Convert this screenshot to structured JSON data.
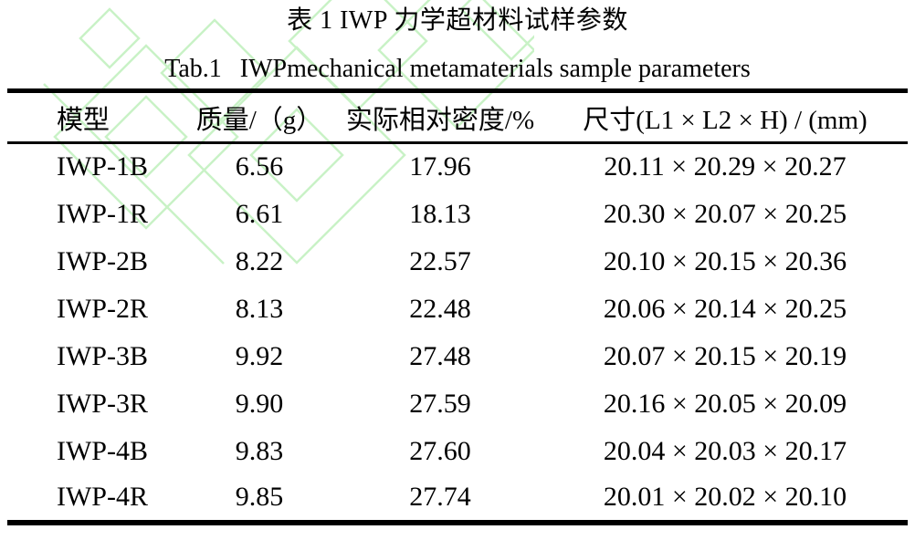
{
  "captions": {
    "zh": "表 1 IWP 力学超材料试样参数",
    "en_prefix": "Tab.1",
    "en_text": "IWPmechanical metamaterials sample parameters"
  },
  "table": {
    "columns": [
      "模型",
      "质量/（g）",
      "实际相对密度/%",
      "尺寸(L1 × L2 × H) / (mm)"
    ],
    "rows": [
      [
        "IWP-1B",
        "6.56",
        "17.96",
        "20.11 × 20.29 × 20.27"
      ],
      [
        "IWP-1R",
        "6.61",
        "18.13",
        "20.30 × 20.07 × 20.25"
      ],
      [
        "IWP-2B",
        "8.22",
        "22.57",
        "20.10 × 20.15 × 20.36"
      ],
      [
        "IWP-2R",
        "8.13",
        "22.48",
        "20.06 × 20.14 × 20.25"
      ],
      [
        "IWP-3B",
        "9.92",
        "27.48",
        "20.07 × 20.15 × 20.19"
      ],
      [
        "IWP-3R",
        "9.90",
        "27.59",
        "20.16 × 20.05 × 20.09"
      ],
      [
        "IWP-4B",
        "9.83",
        "27.60",
        "20.04 × 20.03 × 20.17"
      ],
      [
        "IWP-4R",
        "9.85",
        "27.74",
        "20.01 × 20.02 × 20.10"
      ]
    ]
  },
  "chart_data": {
    "type": "table",
    "title": "表 1 IWP 力学超材料试样参数 / Tab.1 IWPmechanical metamaterials sample parameters",
    "columns": [
      "模型",
      "质量/（g）",
      "实际相对密度/%",
      "尺寸(L1 × L2 × H) / (mm)"
    ],
    "rows": [
      [
        "IWP-1B",
        6.56,
        17.96,
        "20.11 × 20.29 × 20.27"
      ],
      [
        "IWP-1R",
        6.61,
        18.13,
        "20.30 × 20.07 × 20.25"
      ],
      [
        "IWP-2B",
        8.22,
        22.57,
        "20.10 × 20.15 × 20.36"
      ],
      [
        "IWP-2R",
        8.13,
        22.48,
        "20.06 × 20.14 × 20.25"
      ],
      [
        "IWP-3B",
        9.92,
        27.48,
        "20.07 × 20.15 × 20.19"
      ],
      [
        "IWP-3R",
        9.9,
        27.59,
        "20.16 × 20.05 × 20.09"
      ],
      [
        "IWP-4B",
        9.83,
        27.6,
        "20.04 × 20.03 × 20.17"
      ],
      [
        "IWP-4R",
        9.85,
        27.74,
        "20.01 × 20.02 × 20.10"
      ]
    ]
  },
  "watermark": {
    "color": "#c9f2c6"
  }
}
